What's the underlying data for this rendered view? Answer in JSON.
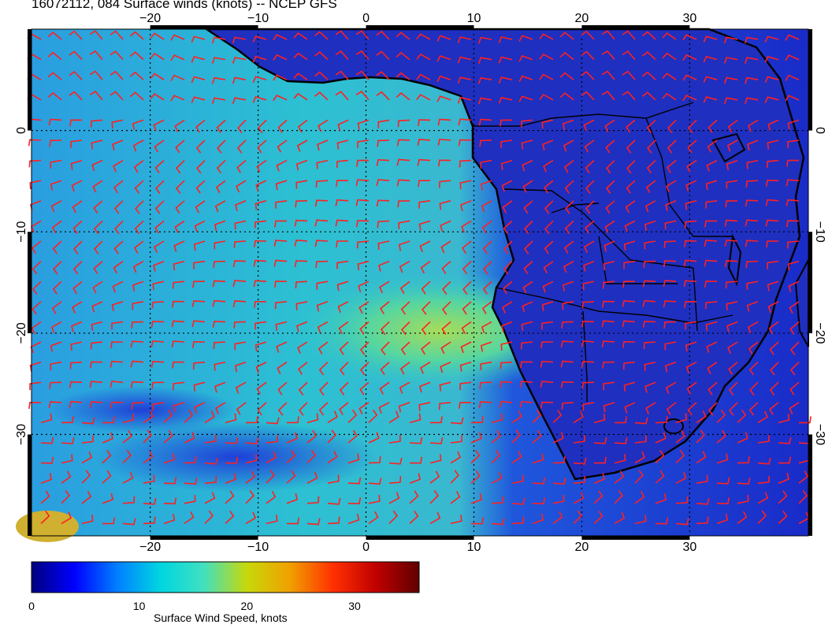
{
  "title": "16072112, 084 Surface winds (knots) -- NCEP GFS",
  "map": {
    "lon_ticks": [
      "-20",
      "-10",
      "0",
      "10",
      "20",
      "30"
    ],
    "lat_ticks": [
      "0",
      "-10",
      "-20",
      "-30"
    ],
    "lon_range": [
      -31,
      41
    ],
    "lat_range": [
      -40,
      10
    ],
    "gridlines": "dotted",
    "barb_color": "#ff2020",
    "coast_color": "#000000",
    "ocean_colors": [
      "#1a2bd0",
      "#1d8fe0",
      "#2fc6cc",
      "#54d6a4",
      "#9fd95a"
    ]
  },
  "colorbar": {
    "label": "Surface Wind Speed, knots",
    "ticks": [
      "0",
      "10",
      "20",
      "30"
    ],
    "range": [
      0,
      36
    ],
    "colors": [
      "#00007f",
      "#0000ff",
      "#0080ff",
      "#00d6e0",
      "#40e0c0",
      "#c8d80a",
      "#f0a000",
      "#ff3000",
      "#c00000",
      "#600000"
    ]
  }
}
